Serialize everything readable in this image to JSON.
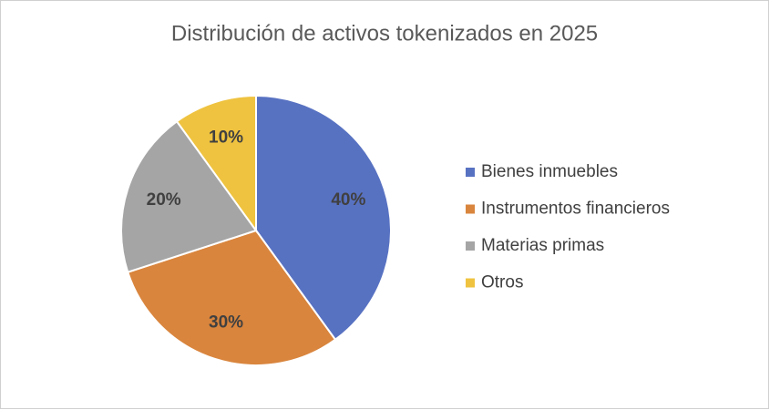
{
  "chart_data": {
    "type": "pie",
    "title": "Distribución de activos tokenizados en 2025",
    "categories": [
      "Bienes inmuebles",
      "Instrumentos financieros",
      "Materias primas",
      "Otros"
    ],
    "values": [
      40,
      30,
      20,
      10
    ],
    "value_labels": [
      "40%",
      "30%",
      "20%",
      "10%"
    ],
    "colors": [
      "#5872c2",
      "#d9853d",
      "#a5a5a5",
      "#efc340"
    ],
    "legend": "right"
  }
}
